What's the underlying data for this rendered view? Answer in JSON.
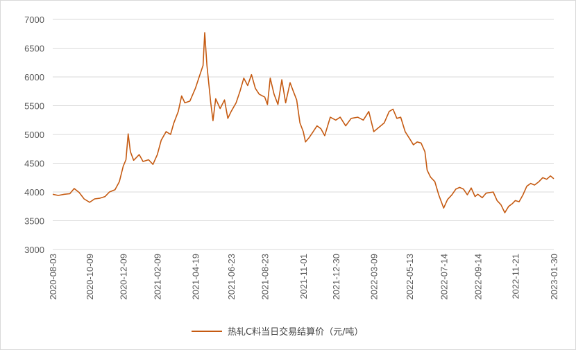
{
  "chart_data": {
    "type": "line",
    "title": "",
    "xlabel": "",
    "ylabel": "",
    "ylim": [
      3000,
      7000
    ],
    "y_ticks": [
      3000,
      3500,
      4000,
      4500,
      5000,
      5500,
      6000,
      6500,
      7000
    ],
    "x_range": [
      "2020-08-03",
      "2023-01-30"
    ],
    "x_ticks": [
      "2020-08-03",
      "2020-10-09",
      "2020-12-09",
      "2021-02-09",
      "2021-04-19",
      "2021-06-23",
      "2021-08-23",
      "2021-11-01",
      "2021-12-30",
      "2022-03-09",
      "2022-05-13",
      "2022-07-14",
      "2022-09-14",
      "2022-11-21",
      "2023-01-30"
    ],
    "grid": "horizontal",
    "legend_position": "bottom",
    "series": [
      {
        "name": "热轧C料当日交易结算价（元/吨）",
        "color": "#C55A11",
        "points": [
          [
            "2020-08-03",
            3960
          ],
          [
            "2020-08-13",
            3940
          ],
          [
            "2020-08-24",
            3960
          ],
          [
            "2020-09-03",
            3970
          ],
          [
            "2020-09-11",
            4060
          ],
          [
            "2020-09-20",
            3990
          ],
          [
            "2020-09-29",
            3880
          ],
          [
            "2020-10-09",
            3820
          ],
          [
            "2020-10-18",
            3880
          ],
          [
            "2020-10-27",
            3890
          ],
          [
            "2020-11-06",
            3920
          ],
          [
            "2020-11-14",
            4000
          ],
          [
            "2020-11-24",
            4040
          ],
          [
            "2020-12-02",
            4180
          ],
          [
            "2020-12-09",
            4450
          ],
          [
            "2020-12-14",
            4560
          ],
          [
            "2020-12-18",
            5010
          ],
          [
            "2020-12-22",
            4700
          ],
          [
            "2020-12-28",
            4550
          ],
          [
            "2021-01-07",
            4650
          ],
          [
            "2021-01-14",
            4530
          ],
          [
            "2021-01-24",
            4560
          ],
          [
            "2021-02-01",
            4480
          ],
          [
            "2021-02-09",
            4650
          ],
          [
            "2021-02-16",
            4900
          ],
          [
            "2021-02-25",
            5050
          ],
          [
            "2021-03-05",
            5000
          ],
          [
            "2021-03-11",
            5200
          ],
          [
            "2021-03-19",
            5400
          ],
          [
            "2021-03-25",
            5670
          ],
          [
            "2021-03-31",
            5550
          ],
          [
            "2021-04-09",
            5580
          ],
          [
            "2021-04-19",
            5800
          ],
          [
            "2021-04-26",
            6000
          ],
          [
            "2021-05-03",
            6200
          ],
          [
            "2021-05-06",
            6770
          ],
          [
            "2021-05-10",
            6200
          ],
          [
            "2021-05-17",
            5550
          ],
          [
            "2021-05-21",
            5240
          ],
          [
            "2021-05-26",
            5620
          ],
          [
            "2021-06-03",
            5450
          ],
          [
            "2021-06-11",
            5600
          ],
          [
            "2021-06-17",
            5280
          ],
          [
            "2021-06-23",
            5400
          ],
          [
            "2021-07-02",
            5550
          ],
          [
            "2021-07-09",
            5750
          ],
          [
            "2021-07-16",
            5980
          ],
          [
            "2021-07-23",
            5850
          ],
          [
            "2021-07-30",
            6040
          ],
          [
            "2021-08-06",
            5800
          ],
          [
            "2021-08-13",
            5700
          ],
          [
            "2021-08-23",
            5650
          ],
          [
            "2021-08-28",
            5520
          ],
          [
            "2021-09-02",
            5980
          ],
          [
            "2021-09-09",
            5700
          ],
          [
            "2021-09-16",
            5520
          ],
          [
            "2021-09-23",
            5950
          ],
          [
            "2021-09-30",
            5550
          ],
          [
            "2021-10-08",
            5900
          ],
          [
            "2021-10-14",
            5750
          ],
          [
            "2021-10-20",
            5600
          ],
          [
            "2021-10-26",
            5200
          ],
          [
            "2021-11-01",
            5050
          ],
          [
            "2021-11-05",
            4870
          ],
          [
            "2021-11-12",
            4950
          ],
          [
            "2021-11-19",
            5050
          ],
          [
            "2021-11-26",
            5150
          ],
          [
            "2021-12-03",
            5100
          ],
          [
            "2021-12-10",
            4980
          ],
          [
            "2021-12-20",
            5300
          ],
          [
            "2021-12-30",
            5250
          ],
          [
            "2022-01-07",
            5300
          ],
          [
            "2022-01-17",
            5150
          ],
          [
            "2022-01-27",
            5280
          ],
          [
            "2022-02-08",
            5300
          ],
          [
            "2022-02-18",
            5250
          ],
          [
            "2022-02-28",
            5400
          ],
          [
            "2022-03-09",
            5050
          ],
          [
            "2022-03-18",
            5120
          ],
          [
            "2022-03-28",
            5200
          ],
          [
            "2022-04-06",
            5400
          ],
          [
            "2022-04-13",
            5440
          ],
          [
            "2022-04-20",
            5280
          ],
          [
            "2022-04-27",
            5300
          ],
          [
            "2022-05-05",
            5050
          ],
          [
            "2022-05-13",
            4930
          ],
          [
            "2022-05-20",
            4820
          ],
          [
            "2022-05-27",
            4870
          ],
          [
            "2022-06-03",
            4850
          ],
          [
            "2022-06-10",
            4700
          ],
          [
            "2022-06-14",
            4380
          ],
          [
            "2022-06-20",
            4260
          ],
          [
            "2022-06-28",
            4180
          ],
          [
            "2022-07-05",
            3950
          ],
          [
            "2022-07-14",
            3720
          ],
          [
            "2022-07-21",
            3870
          ],
          [
            "2022-07-29",
            3950
          ],
          [
            "2022-08-05",
            4050
          ],
          [
            "2022-08-12",
            4080
          ],
          [
            "2022-08-19",
            4050
          ],
          [
            "2022-08-26",
            3950
          ],
          [
            "2022-09-02",
            4070
          ],
          [
            "2022-09-09",
            3920
          ],
          [
            "2022-09-14",
            3960
          ],
          [
            "2022-09-22",
            3900
          ],
          [
            "2022-09-29",
            3980
          ],
          [
            "2022-10-12",
            4000
          ],
          [
            "2022-10-19",
            3850
          ],
          [
            "2022-10-26",
            3780
          ],
          [
            "2022-11-02",
            3640
          ],
          [
            "2022-11-09",
            3750
          ],
          [
            "2022-11-16",
            3800
          ],
          [
            "2022-11-21",
            3850
          ],
          [
            "2022-11-28",
            3830
          ],
          [
            "2022-12-05",
            3950
          ],
          [
            "2022-12-12",
            4100
          ],
          [
            "2022-12-19",
            4150
          ],
          [
            "2022-12-26",
            4120
          ],
          [
            "2023-01-03",
            4180
          ],
          [
            "2023-01-10",
            4250
          ],
          [
            "2023-01-17",
            4220
          ],
          [
            "2023-01-24",
            4280
          ],
          [
            "2023-01-30",
            4230
          ]
        ]
      }
    ]
  }
}
